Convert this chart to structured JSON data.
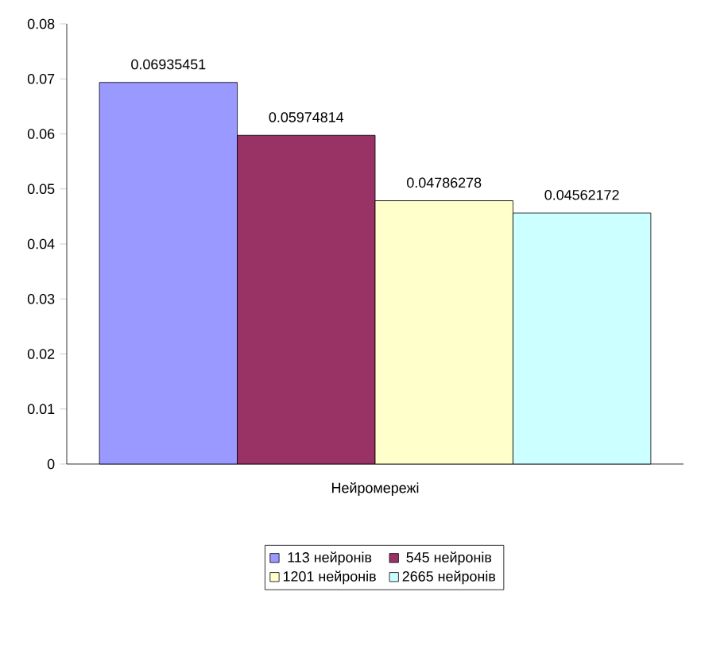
{
  "chart_data": {
    "type": "bar",
    "categories": [
      "Нейромережі"
    ],
    "series": [
      {
        "name": "113 нейронів",
        "color": "#9999ff",
        "values": [
          0.06935451
        ]
      },
      {
        "name": "545 нейронів",
        "color": "#993366",
        "values": [
          0.05974814
        ]
      },
      {
        "name": "1201 нейронів",
        "color": "#ffffcc",
        "values": [
          0.04786278
        ]
      },
      {
        "name": "2665 нейронів",
        "color": "#ccffff",
        "values": [
          0.04562172
        ]
      }
    ],
    "ylim": [
      0,
      0.08
    ],
    "yticks": [
      0,
      0.01,
      0.02,
      0.03,
      0.04,
      0.05,
      0.06,
      0.07,
      0.08
    ],
    "data_labels": true,
    "legend": "bottom"
  }
}
